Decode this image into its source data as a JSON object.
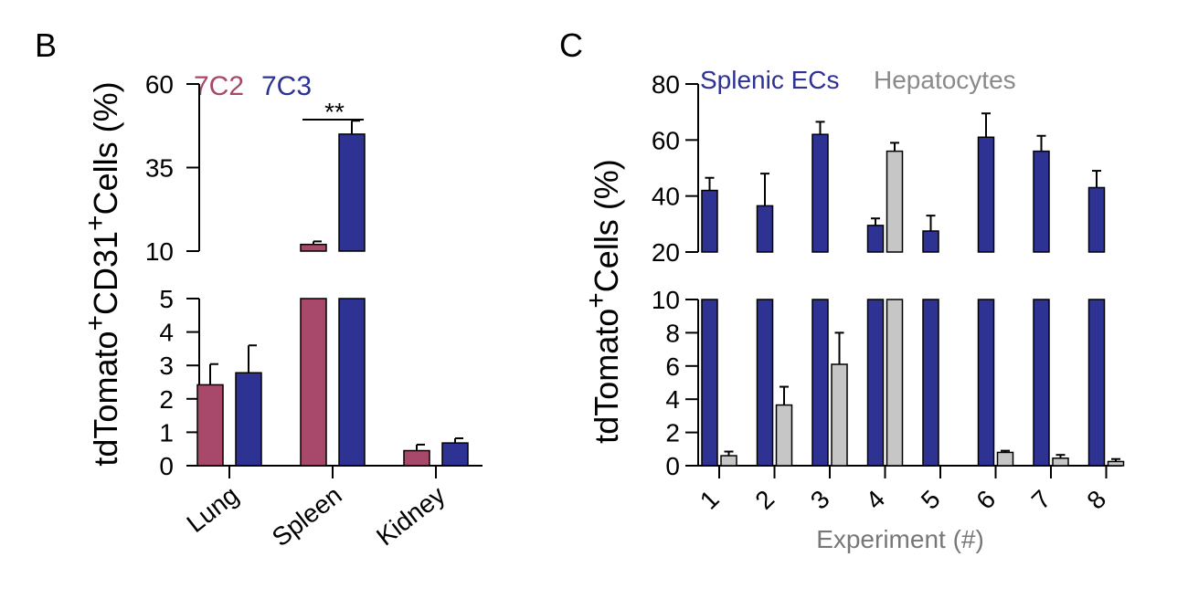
{
  "colors": {
    "series_7C2": "#a8486a",
    "series_7C3": "#2d3293",
    "splenic": "#2d3293",
    "hepatocytes": "#c6c6c6",
    "hepatocytes_text": "#8a8a8a",
    "axis": "#000000",
    "xlabel_text": "#777777"
  },
  "chart_data": [
    {
      "panel": "B",
      "type": "bar",
      "ylabel": "tdTomato⁺CD31⁺Cells (%)",
      "ylabel_parts": [
        "tdTomato",
        "+",
        "CD31",
        "+",
        "Cells (%)"
      ],
      "categories": [
        "Lung",
        "Spleen",
        "Kidney"
      ],
      "series": [
        {
          "name": "7C2",
          "values": [
            2.42,
            12.0,
            0.45
          ],
          "errors": [
            0.62,
            0.9,
            0.18
          ]
        },
        {
          "name": "7C3",
          "values": [
            2.78,
            45.0,
            0.68
          ],
          "errors": [
            0.82,
            4.0,
            0.14
          ]
        }
      ],
      "broken_axis": true,
      "lower_segment": {
        "ylim": [
          0,
          5
        ],
        "ticks": [
          0,
          1,
          2,
          3,
          4,
          5
        ]
      },
      "upper_segment": {
        "ylim": [
          10,
          60
        ],
        "ticks": [
          10,
          35,
          60
        ]
      },
      "annotation": {
        "text": "**",
        "category": "Spleen"
      },
      "legend_position": "top-left",
      "grid": false
    },
    {
      "panel": "C",
      "type": "bar",
      "ylabel": "tdTomato⁺Cells (%)",
      "ylabel_parts": [
        "tdTomato",
        "+",
        "Cells (%)"
      ],
      "xlabel": "Experiment (#)",
      "categories": [
        "1",
        "2",
        "3",
        "4",
        "5",
        "6",
        "7",
        "8"
      ],
      "series": [
        {
          "name": "Splenic ECs",
          "values": [
            42,
            36.5,
            62,
            29.5,
            27.5,
            61,
            56,
            43
          ],
          "errors": [
            4.5,
            11.5,
            4.5,
            2.5,
            5.5,
            8.5,
            5.5,
            6
          ]
        },
        {
          "name": "Hepatocytes",
          "values": [
            0.6,
            3.65,
            6.1,
            56,
            0,
            0.8,
            0.45,
            0.25
          ],
          "errors": [
            0.25,
            1.1,
            1.9,
            3.0,
            0,
            0.1,
            0.2,
            0.15
          ]
        }
      ],
      "broken_axis": true,
      "lower_segment": {
        "ylim": [
          0,
          10
        ],
        "ticks": [
          0,
          2,
          4,
          6,
          8,
          10
        ]
      },
      "upper_segment": {
        "ylim": [
          20,
          80
        ],
        "ticks": [
          20,
          40,
          60,
          80
        ]
      },
      "legend_position": "top",
      "grid": false
    }
  ],
  "panel_labels": {
    "b": "B",
    "c": "C"
  }
}
